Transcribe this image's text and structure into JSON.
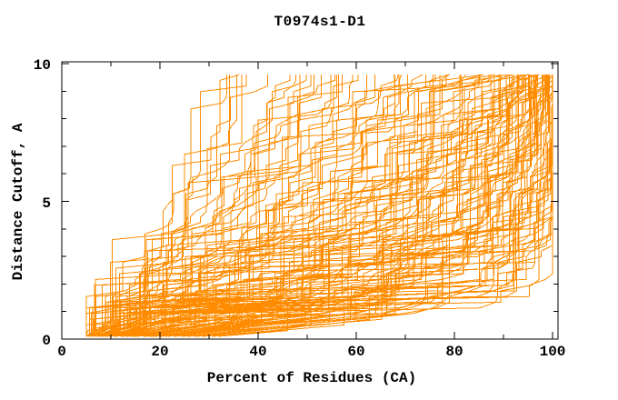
{
  "page": {
    "background": "#ffffff",
    "text_color": "#000000"
  },
  "chart_data": {
    "type": "line",
    "title": "T0974s1-D1",
    "xlabel": "Percent of Residues (CA)",
    "ylabel": "Distance Cutoff, A",
    "xlim": [
      0,
      100
    ],
    "ylim": [
      0,
      10
    ],
    "x_ticks_major": [
      0,
      20,
      40,
      60,
      80,
      100
    ],
    "x_ticks_minor": [
      10,
      30,
      50,
      70,
      90
    ],
    "y_ticks_major": [
      0,
      5,
      10
    ],
    "y_ticks_minor": [
      1,
      2,
      3,
      4,
      6,
      7,
      8,
      9
    ],
    "grid": false,
    "legend": null,
    "series_color": "#ff8c00",
    "axis_color": "#000000",
    "cutoff_knots": [
      0.1,
      1,
      2,
      4,
      6,
      9.6
    ],
    "curves_percent_at_knots": [
      [
        32,
        88,
        98,
        100,
        100,
        100
      ],
      [
        30,
        84,
        95,
        100,
        100,
        100
      ],
      [
        28,
        81,
        93,
        99,
        100,
        100
      ],
      [
        27,
        78,
        91,
        98,
        100,
        100
      ],
      [
        25,
        76,
        89,
        97,
        100,
        100
      ],
      [
        23,
        73,
        87,
        96,
        99,
        100
      ],
      [
        21,
        71,
        86,
        95,
        98,
        100
      ],
      [
        19,
        68,
        84,
        94,
        98,
        100
      ],
      [
        22,
        66,
        82,
        93,
        97,
        100
      ],
      [
        17,
        64,
        80,
        92,
        96,
        100
      ],
      [
        19,
        62,
        78,
        90,
        95,
        100
      ],
      [
        16,
        60,
        76,
        89,
        95,
        99
      ],
      [
        18,
        58,
        74,
        88,
        94,
        99
      ],
      [
        14,
        56,
        72,
        86,
        93,
        99
      ],
      [
        16,
        54,
        70,
        85,
        92,
        98
      ],
      [
        13,
        52,
        68,
        83,
        91,
        98
      ],
      [
        15,
        50,
        66,
        82,
        90,
        98
      ],
      [
        12,
        48,
        64,
        80,
        89,
        97
      ],
      [
        14,
        46,
        62,
        78,
        87,
        97
      ],
      [
        11,
        45,
        60,
        77,
        86,
        97
      ],
      [
        13,
        43,
        58,
        75,
        85,
        96
      ],
      [
        10,
        41,
        56,
        73,
        84,
        96
      ],
      [
        12,
        40,
        54,
        72,
        82,
        95
      ],
      [
        9,
        38,
        52,
        70,
        81,
        95
      ],
      [
        11,
        36,
        50,
        68,
        79,
        94
      ],
      [
        10,
        35,
        48,
        66,
        78,
        93
      ],
      [
        8,
        33,
        46,
        64,
        76,
        92
      ],
      [
        10,
        32,
        44,
        62,
        74,
        91
      ],
      [
        7,
        30,
        42,
        60,
        72,
        90
      ],
      [
        9,
        29,
        40,
        58,
        70,
        88
      ],
      [
        7,
        27,
        38,
        55,
        68,
        86
      ],
      [
        8,
        26,
        36,
        53,
        65,
        84
      ],
      [
        6,
        25,
        34,
        50,
        62,
        82
      ],
      [
        7,
        23,
        32,
        48,
        60,
        79
      ],
      [
        6,
        22,
        30,
        45,
        57,
        76
      ],
      [
        7,
        21,
        29,
        43,
        54,
        73
      ],
      [
        5,
        19,
        27,
        40,
        51,
        70
      ],
      [
        6,
        18,
        25,
        38,
        48,
        66
      ],
      [
        6,
        17,
        24,
        35,
        45,
        62
      ],
      [
        5,
        16,
        22,
        33,
        42,
        58
      ],
      [
        6,
        15,
        21,
        30,
        39,
        54
      ],
      [
        5,
        14,
        19,
        28,
        36,
        49
      ],
      [
        5,
        13,
        18,
        25,
        32,
        44
      ],
      [
        5,
        12,
        16,
        23,
        29,
        40
      ],
      [
        5,
        11,
        15,
        21,
        26,
        36
      ]
    ],
    "density_fill_between": 2
  }
}
